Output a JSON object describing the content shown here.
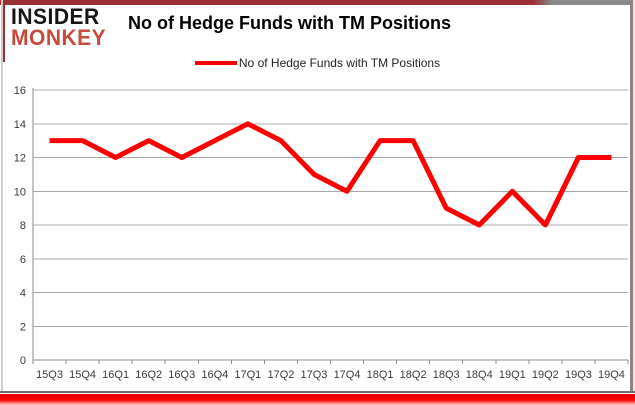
{
  "logo": {
    "line1": "INSIDER",
    "line2": "MONKEY",
    "accent_color": "#c64b3b"
  },
  "header": {
    "title": "No of Hedge Funds with TM Positions"
  },
  "legend": {
    "label": "No of Hedge Funds with TM Positions",
    "swatch_color": "#ff0000"
  },
  "chart_data": {
    "type": "line",
    "title": "No of Hedge Funds with TM Positions",
    "categories": [
      "15Q3",
      "15Q4",
      "16Q1",
      "16Q2",
      "16Q3",
      "16Q4",
      "17Q1",
      "17Q2",
      "17Q3",
      "17Q4",
      "18Q1",
      "18Q2",
      "18Q3",
      "18Q4",
      "19Q1",
      "19Q2",
      "19Q3",
      "19Q4"
    ],
    "series": [
      {
        "name": "No of Hedge Funds with TM Positions",
        "color": "#ff0000",
        "values": [
          13,
          13,
          12,
          13,
          12,
          13,
          14,
          13,
          11,
          10,
          13,
          13,
          9,
          8,
          10,
          8,
          12,
          12
        ]
      }
    ],
    "xlabel": "",
    "ylabel": "",
    "ylim": [
      0,
      16
    ],
    "ytick_step": 2,
    "grid": true,
    "legend_position": "top"
  },
  "colors": {
    "line": "#ff0000",
    "grid": "#a8a8a8",
    "axis": "#8c8c8c",
    "tick_label": "#3a3a3a",
    "frame_dark_red": "#9c2f33",
    "bottom_strip_red": "#ff0000"
  }
}
